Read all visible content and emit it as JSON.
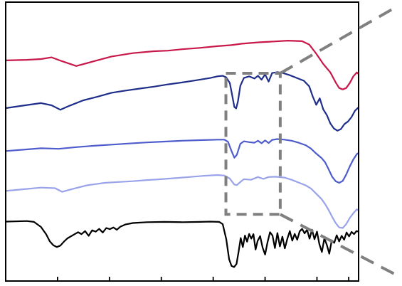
{
  "chart_data": {
    "type": "line",
    "title": "",
    "xlabel": "",
    "ylabel": "",
    "x_tick_labels": [],
    "y_tick_labels": [],
    "grid": false,
    "legend": "none",
    "plot_frame_color": "#000000",
    "highlight_box_color": "#808080",
    "xlim": [
      0,
      100
    ],
    "ylim": [
      0,
      100
    ],
    "x_ticks": [
      0,
      14.7,
      29.4,
      44.1,
      58.8,
      73.5,
      88.2,
      97.2
    ],
    "highlight_box": {
      "x": [
        62.4,
        77.8
      ],
      "y": [
        23.9,
        74.5
      ]
    },
    "zoom_connectors": [
      {
        "from": [
          77.8,
          74.5
        ],
        "to": [
          100,
          100
        ]
      },
      {
        "from": [
          77.8,
          23.9
        ],
        "to": [
          100,
          0
        ]
      }
    ],
    "series": [
      {
        "color": "#c8184a",
        "points": [
          [
            0,
            79.1
          ],
          [
            6,
            79.3
          ],
          [
            10,
            79.6
          ],
          [
            13,
            80.2
          ],
          [
            16,
            78.8
          ],
          [
            20,
            77.1
          ],
          [
            25,
            78.8
          ],
          [
            30,
            80.5
          ],
          [
            36,
            81.7
          ],
          [
            42,
            82.4
          ],
          [
            46,
            82.6
          ],
          [
            50,
            83.1
          ],
          [
            55,
            83.6
          ],
          [
            60,
            84.2
          ],
          [
            64,
            84.6
          ],
          [
            67,
            85.1
          ],
          [
            72,
            85.6
          ],
          [
            76,
            85.9
          ],
          [
            80,
            86.2
          ],
          [
            84,
            86.0
          ],
          [
            86,
            84.8
          ],
          [
            88,
            81.5
          ],
          [
            90,
            77.8
          ],
          [
            92,
            74.8
          ],
          [
            93.5,
            71.2
          ],
          [
            94.5,
            69.2
          ],
          [
            95.5,
            68.7
          ],
          [
            96.5,
            69.2
          ],
          [
            97.5,
            71.0
          ],
          [
            98.5,
            73.4
          ],
          [
            99.5,
            74.8
          ],
          [
            100,
            74.2
          ]
        ]
      },
      {
        "color": "#1f2e8a",
        "points": [
          [
            0,
            62.0
          ],
          [
            5,
            62.9
          ],
          [
            10,
            63.8
          ],
          [
            13,
            63.0
          ],
          [
            15.5,
            61.4
          ],
          [
            18,
            62.8
          ],
          [
            22,
            64.8
          ],
          [
            26,
            66.1
          ],
          [
            30,
            67.5
          ],
          [
            34,
            68.3
          ],
          [
            38,
            69.0
          ],
          [
            42,
            69.7
          ],
          [
            46,
            70.5
          ],
          [
            50,
            71.2
          ],
          [
            54,
            72.0
          ],
          [
            58,
            72.8
          ],
          [
            60,
            73.4
          ],
          [
            61.5,
            73.6
          ],
          [
            62.5,
            73.0
          ],
          [
            63.5,
            71.0
          ],
          [
            64.2,
            66.5
          ],
          [
            64.8,
            62.4
          ],
          [
            65.3,
            61.9
          ],
          [
            65.8,
            64.4
          ],
          [
            66.5,
            70.0
          ],
          [
            67.5,
            72.8
          ],
          [
            69,
            73.4
          ],
          [
            70.5,
            72.6
          ],
          [
            71.5,
            73.6
          ],
          [
            72.5,
            72.2
          ],
          [
            73.5,
            74.1
          ],
          [
            74.5,
            71.5
          ],
          [
            75.5,
            74.6
          ],
          [
            77,
            74.9
          ],
          [
            78.5,
            74.6
          ],
          [
            80.5,
            73.8
          ],
          [
            82.5,
            72.8
          ],
          [
            84.5,
            71.8
          ],
          [
            86,
            69.8
          ],
          [
            87,
            66.2
          ],
          [
            88,
            63.2
          ],
          [
            89,
            65.5
          ],
          [
            90,
            61.5
          ],
          [
            91,
            59.5
          ],
          [
            92,
            56.5
          ],
          [
            93,
            54.7
          ],
          [
            94,
            53.9
          ],
          [
            95,
            54.5
          ],
          [
            96,
            56.3
          ],
          [
            97,
            57.2
          ],
          [
            98,
            58.8
          ],
          [
            99,
            61.1
          ],
          [
            100,
            62.3
          ]
        ]
      },
      {
        "color": "#4e5ccd",
        "points": [
          [
            0,
            46.6
          ],
          [
            5,
            47.1
          ],
          [
            10,
            47.6
          ],
          [
            15,
            47.4
          ],
          [
            20,
            48.0
          ],
          [
            25,
            48.5
          ],
          [
            30,
            48.9
          ],
          [
            35,
            49.3
          ],
          [
            40,
            49.7
          ],
          [
            45,
            50.0
          ],
          [
            50,
            50.3
          ],
          [
            55,
            50.5
          ],
          [
            60,
            50.7
          ],
          [
            62,
            50.7
          ],
          [
            63,
            49.9
          ],
          [
            64,
            46.6
          ],
          [
            64.8,
            44.2
          ],
          [
            65.5,
            45.3
          ],
          [
            66.5,
            49.2
          ],
          [
            67.5,
            50.1
          ],
          [
            69,
            49.8
          ],
          [
            70.5,
            49.6
          ],
          [
            71.5,
            50.3
          ],
          [
            72.5,
            49.4
          ],
          [
            73.5,
            50.4
          ],
          [
            74.5,
            49.5
          ],
          [
            75.5,
            50.6
          ],
          [
            77,
            50.9
          ],
          [
            79,
            50.7
          ],
          [
            81,
            50.3
          ],
          [
            83,
            49.6
          ],
          [
            85,
            48.7
          ],
          [
            86.5,
            47.5
          ],
          [
            88,
            45.7
          ],
          [
            89.5,
            44.1
          ],
          [
            90.5,
            42.6
          ],
          [
            91.5,
            40.1
          ],
          [
            92.5,
            37.4
          ],
          [
            93.5,
            35.8
          ],
          [
            94.5,
            35.2
          ],
          [
            95.5,
            35.9
          ],
          [
            96.5,
            38.2
          ],
          [
            97.5,
            41.1
          ],
          [
            98.5,
            43.6
          ],
          [
            99.5,
            45.5
          ],
          [
            100,
            45.9
          ]
        ]
      },
      {
        "color": "#9aa3ea",
        "points": [
          [
            0,
            32.3
          ],
          [
            5,
            32.9
          ],
          [
            10,
            33.5
          ],
          [
            14,
            33.3
          ],
          [
            16,
            32.0
          ],
          [
            19,
            33.0
          ],
          [
            23,
            34.3
          ],
          [
            28,
            35.2
          ],
          [
            32,
            35.5
          ],
          [
            36,
            35.8
          ],
          [
            40,
            36.2
          ],
          [
            44,
            36.5
          ],
          [
            48,
            36.9
          ],
          [
            52,
            37.3
          ],
          [
            56,
            37.7
          ],
          [
            60,
            38.0
          ],
          [
            62,
            37.8
          ],
          [
            63.5,
            36.7
          ],
          [
            64.8,
            34.6
          ],
          [
            65.5,
            34.4
          ],
          [
            66.5,
            35.5
          ],
          [
            67.5,
            36.5
          ],
          [
            69.5,
            36.3
          ],
          [
            71.5,
            37.3
          ],
          [
            73,
            36.6
          ],
          [
            74.5,
            37.3
          ],
          [
            76.5,
            37.4
          ],
          [
            79,
            37.1
          ],
          [
            81,
            36.3
          ],
          [
            83,
            35.3
          ],
          [
            85,
            34.3
          ],
          [
            86.5,
            33.2
          ],
          [
            88,
            31.3
          ],
          [
            89.5,
            29.4
          ],
          [
            90.5,
            27.6
          ],
          [
            91.5,
            25.5
          ],
          [
            92.5,
            23.0
          ],
          [
            93.5,
            20.8
          ],
          [
            94.5,
            19.2
          ],
          [
            95.5,
            19.0
          ],
          [
            96.5,
            20.4
          ],
          [
            97.5,
            22.6
          ],
          [
            98.5,
            24.3
          ],
          [
            99.5,
            25.7
          ],
          [
            100,
            25.3
          ]
        ]
      },
      {
        "color": "#000000",
        "points": [
          [
            0,
            21.3
          ],
          [
            6,
            21.5
          ],
          [
            8,
            21.2
          ],
          [
            10,
            19.4
          ],
          [
            11.5,
            16.7
          ],
          [
            12.5,
            14.2
          ],
          [
            13.5,
            12.8
          ],
          [
            14.5,
            12.2
          ],
          [
            15.5,
            12.7
          ],
          [
            16.5,
            14.1
          ],
          [
            17.5,
            15.3
          ],
          [
            19,
            16.4
          ],
          [
            20.5,
            17.5
          ],
          [
            21.5,
            16.8
          ],
          [
            22.5,
            17.9
          ],
          [
            23.5,
            16.2
          ],
          [
            24.5,
            18.2
          ],
          [
            25.5,
            17.7
          ],
          [
            26.5,
            18.7
          ],
          [
            27.5,
            17.4
          ],
          [
            28.5,
            19.0
          ],
          [
            29.5,
            18.6
          ],
          [
            30.5,
            19.2
          ],
          [
            31.5,
            18.4
          ],
          [
            32.5,
            19.5
          ],
          [
            34,
            20.3
          ],
          [
            36,
            20.8
          ],
          [
            40,
            21.1
          ],
          [
            45,
            21.2
          ],
          [
            50,
            21.1
          ],
          [
            55,
            21.2
          ],
          [
            58,
            21.3
          ],
          [
            60.5,
            21.2
          ],
          [
            61.5,
            20.4
          ],
          [
            62.5,
            15.0
          ],
          [
            63.3,
            7.8
          ],
          [
            64,
            5.4
          ],
          [
            64.7,
            5.0
          ],
          [
            65.4,
            6.1
          ],
          [
            66,
            10.6
          ],
          [
            66.6,
            15.4
          ],
          [
            67.2,
            12.2
          ],
          [
            67.8,
            16.3
          ],
          [
            68.4,
            14.1
          ],
          [
            69,
            16.9
          ],
          [
            69.6,
            15.2
          ],
          [
            70.2,
            16.8
          ],
          [
            70.8,
            11.3
          ],
          [
            71.4,
            14.4
          ],
          [
            72.1,
            16.1
          ],
          [
            72.8,
            12.0
          ],
          [
            73.5,
            9.5
          ],
          [
            74.2,
            13.9
          ],
          [
            74.9,
            17.5
          ],
          [
            75.6,
            16.3
          ],
          [
            76.3,
            11.8
          ],
          [
            77,
            17.2
          ],
          [
            77.7,
            12.4
          ],
          [
            78.4,
            15.9
          ],
          [
            79.1,
            11.7
          ],
          [
            79.8,
            15.1
          ],
          [
            80.5,
            17.9
          ],
          [
            81.2,
            14.5
          ],
          [
            81.9,
            16.9
          ],
          [
            82.6,
            14.8
          ],
          [
            83.3,
            17.8
          ],
          [
            84,
            18.7
          ],
          [
            84.7,
            17.1
          ],
          [
            85.4,
            18.4
          ],
          [
            86.1,
            15.2
          ],
          [
            86.8,
            18.4
          ],
          [
            87.5,
            15.0
          ],
          [
            88.2,
            17.7
          ],
          [
            88.9,
            13.2
          ],
          [
            89.6,
            10.4
          ],
          [
            90.3,
            15.3
          ],
          [
            91,
            12.9
          ],
          [
            91.7,
            9.8
          ],
          [
            92.4,
            14.6
          ],
          [
            93.1,
            13.7
          ],
          [
            93.8,
            16.4
          ],
          [
            94.5,
            14.2
          ],
          [
            95.2,
            16.2
          ],
          [
            95.9,
            14.8
          ],
          [
            96.6,
            17.4
          ],
          [
            97.3,
            16.0
          ],
          [
            98,
            17.6
          ],
          [
            98.7,
            16.8
          ],
          [
            99.4,
            17.9
          ],
          [
            100,
            17.7
          ]
        ]
      }
    ]
  }
}
